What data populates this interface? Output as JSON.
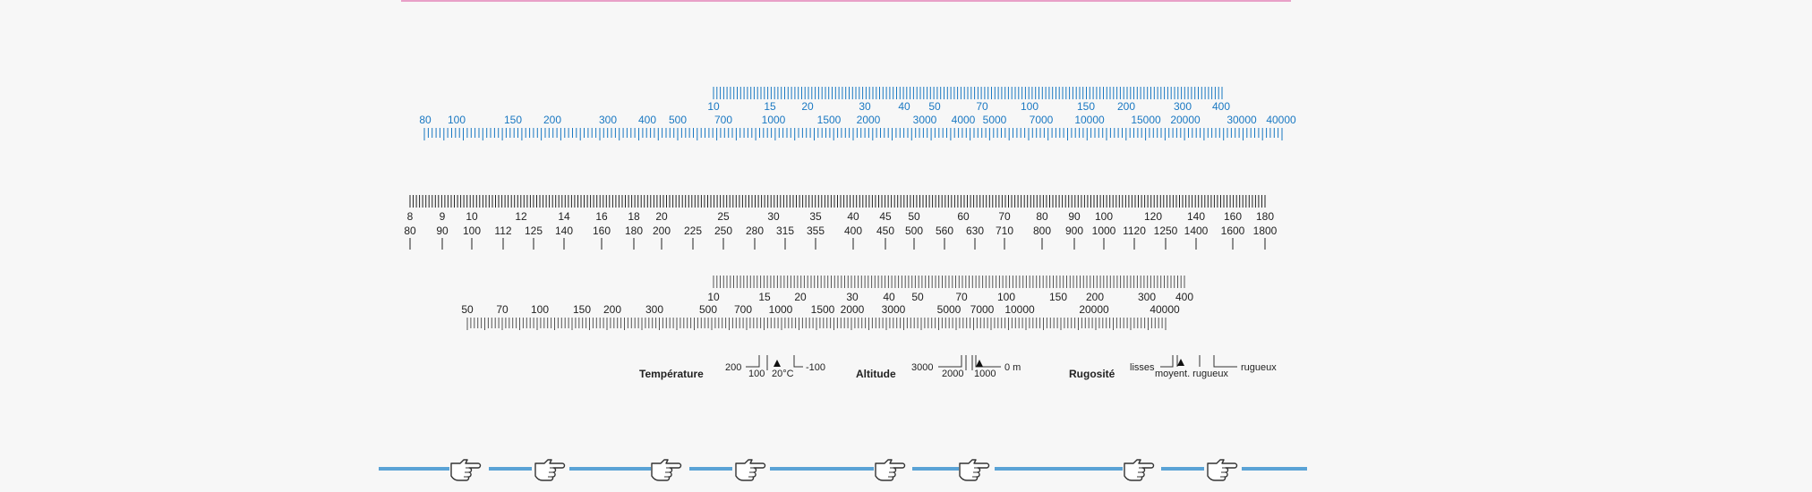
{
  "colors": {
    "blue": "#1a78c2",
    "dark": "#222222",
    "tick_gray": "#555555",
    "line_blue": "#5aa3d6",
    "pink": "#e8a0c8"
  },
  "blue_scale": {
    "top_labels": [
      "10",
      "15",
      "20",
      "30",
      "40",
      "50",
      "70",
      "100",
      "150",
      "200",
      "300",
      "400"
    ],
    "mid_labels": [
      "700",
      "1000",
      "1500",
      "2000",
      "3000",
      "4000",
      "5000",
      "7000",
      "10000",
      "15000",
      "20000",
      "30000",
      "40000"
    ],
    "left_labels": [
      "80",
      "100",
      "150",
      "200",
      "300",
      "400",
      "500"
    ]
  },
  "black_scale": {
    "top_labels": [
      "8",
      "9",
      "10",
      "12",
      "14",
      "16",
      "18",
      "20",
      "25",
      "30",
      "35",
      "40",
      "45",
      "50",
      "60",
      "70",
      "80",
      "90",
      "100",
      "120",
      "140",
      "160",
      "180"
    ],
    "bottom_labels": [
      "80",
      "90",
      "100",
      "112",
      "125",
      "140",
      "160",
      "180",
      "200",
      "225",
      "250",
      "280",
      "315",
      "355",
      "400",
      "450",
      "500",
      "560",
      "630",
      "710",
      "800",
      "900",
      "1000",
      "1120",
      "1250",
      "1400",
      "1600",
      "1800"
    ]
  },
  "gray_scale": {
    "top_labels": [
      "10",
      "15",
      "20",
      "30",
      "40",
      "50",
      "70",
      "100",
      "150",
      "200",
      "300",
      "400"
    ],
    "bottom_labels": [
      "50",
      "70",
      "100",
      "150",
      "200",
      "300",
      "500",
      "700",
      "1000",
      "1500",
      "2000",
      "3000",
      "5000",
      "7000",
      "10000",
      "20000",
      "40000"
    ]
  },
  "legend": {
    "temperature": {
      "title": "Température",
      "v200": "200",
      "v100": "100",
      "v20c": "20°C",
      "vminus100": "-100"
    },
    "altitude": {
      "title": "Altitude",
      "v3000": "3000",
      "v2000": "2000",
      "v1000": "1000",
      "v0m": "0 m"
    },
    "roughness": {
      "title": "Rugosité",
      "lisses": "lisses",
      "moyent": "moyent. rugueux",
      "rugueux": "rugueux"
    }
  },
  "bottom_line": {
    "icons": [
      "hand-pointing-right-icon",
      "hand-pointing-right-icon",
      "hand-pointing-right-icon",
      "hand-pointing-right-icon",
      "hand-pointing-right-icon",
      "hand-pointing-right-icon",
      "hand-pointing-right-icon",
      "hand-pointing-right-icon"
    ]
  }
}
